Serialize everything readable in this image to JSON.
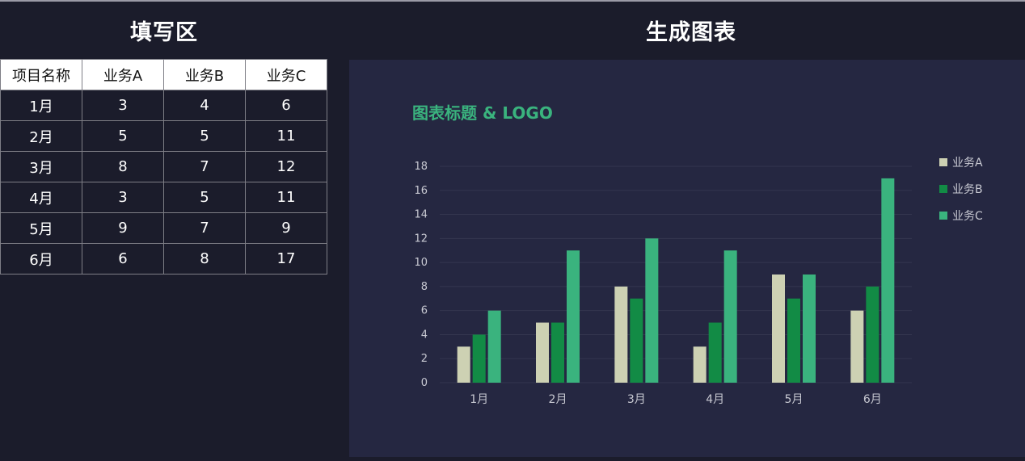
{
  "headings": {
    "left": "填写区",
    "right": "生成图表"
  },
  "table": {
    "columns": [
      "项目名称",
      "业务A",
      "业务B",
      "业务C"
    ],
    "rows": [
      [
        "1月",
        "3",
        "4",
        "6"
      ],
      [
        "2月",
        "5",
        "5",
        "11"
      ],
      [
        "3月",
        "8",
        "7",
        "12"
      ],
      [
        "4月",
        "3",
        "5",
        "11"
      ],
      [
        "5月",
        "9",
        "7",
        "9"
      ],
      [
        "6月",
        "6",
        "8",
        "17"
      ]
    ]
  },
  "chart_data": {
    "type": "bar",
    "title": "图表标题 & LOGO",
    "categories": [
      "1月",
      "2月",
      "3月",
      "4月",
      "5月",
      "6月"
    ],
    "series": [
      {
        "name": "业务A",
        "values": [
          3,
          5,
          8,
          3,
          9,
          6
        ],
        "color": "#cdd1b3"
      },
      {
        "name": "业务B",
        "values": [
          4,
          5,
          7,
          5,
          7,
          8
        ],
        "color": "#128b45"
      },
      {
        "name": "业务C",
        "values": [
          6,
          11,
          12,
          11,
          9,
          17
        ],
        "color": "#3ab37e"
      }
    ],
    "ylim": [
      0,
      18
    ],
    "yticks": [
      0,
      2,
      4,
      6,
      8,
      10,
      12,
      14,
      16,
      18
    ],
    "grid": true,
    "legend": "right"
  },
  "colors": {
    "background": "#1b1c2b",
    "panel": "#252741",
    "title": "#3ab37e",
    "gridline": "#34364f",
    "tick_text": "#c8c9d2"
  }
}
